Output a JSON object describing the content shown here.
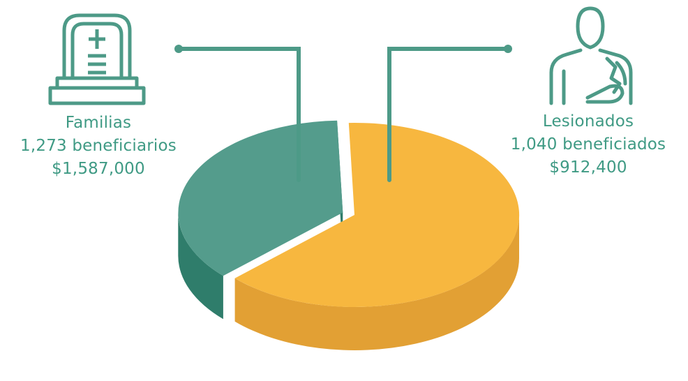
{
  "colors": {
    "familias": "#f7b73f",
    "familias_side": "#e2a034",
    "lesionados": "#549c8c",
    "lesionados_side": "#2f7d6b",
    "accent_text": "#3f9a84",
    "icon_stroke": "#4d9a87"
  },
  "icons": {
    "familias": "tombstone-cross-icon",
    "lesionados": "person-arm-sling-icon"
  },
  "chart_data": {
    "type": "pie",
    "slices": [
      {
        "key": "familias",
        "label": "Familias",
        "count_text": "1,273 beneficiarios",
        "amount_text": "$1,587,000",
        "value": 1587000
      },
      {
        "key": "lesionados",
        "label": "Lesionados",
        "count_text": "1,040 beneficiados",
        "amount_text": "$912,400",
        "value": 912400
      }
    ],
    "style": "3d"
  }
}
